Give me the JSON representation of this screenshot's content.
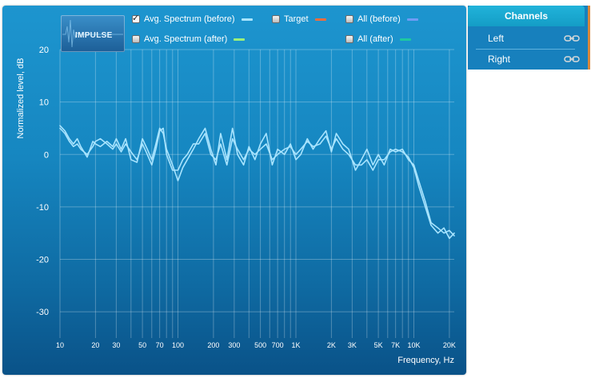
{
  "logo": {
    "label": "IMPULSE"
  },
  "legend": [
    {
      "label": "Avg. Spectrum (before)",
      "checked": true,
      "color": "#a8e4ff"
    },
    {
      "label": "Target",
      "checked": false,
      "color": "#f26d3d"
    },
    {
      "label": "All (before)",
      "checked": false,
      "color": "#6f9cf5"
    },
    {
      "label": "Avg. Spectrum (after)",
      "checked": false,
      "color": "#9bf07a"
    },
    {
      "label": "All (after)",
      "checked": false,
      "color": "#1ec9a0"
    }
  ],
  "channels": {
    "title": "Channels",
    "items": [
      {
        "label": "Left",
        "icon": "link-icon"
      },
      {
        "label": "Right",
        "icon": "link-icon"
      }
    ]
  },
  "chart_data": {
    "type": "line",
    "xlabel": "Frequency, Hz",
    "ylabel": "Normalized level, dB",
    "xscale": "log",
    "xlim": [
      10,
      22000
    ],
    "ylim": [
      -35,
      20
    ],
    "grid": true,
    "yticks": [
      20,
      10,
      0,
      -10,
      -20,
      -30
    ],
    "xticks": [
      {
        "value": 10,
        "label": "10"
      },
      {
        "value": 20,
        "label": "20"
      },
      {
        "value": 30,
        "label": "30"
      },
      {
        "value": 50,
        "label": "50"
      },
      {
        "value": 70,
        "label": "70"
      },
      {
        "value": 100,
        "label": "100"
      },
      {
        "value": 200,
        "label": "200"
      },
      {
        "value": 300,
        "label": "300"
      },
      {
        "value": 500,
        "label": "500"
      },
      {
        "value": 700,
        "label": "700"
      },
      {
        "value": 1000,
        "label": "1K"
      },
      {
        "value": 2000,
        "label": "2K"
      },
      {
        "value": 3000,
        "label": "3K"
      },
      {
        "value": 5000,
        "label": "5K"
      },
      {
        "value": 7000,
        "label": "7K"
      },
      {
        "value": 10000,
        "label": "10K"
      },
      {
        "value": 20000,
        "label": "20K"
      }
    ],
    "series": [
      {
        "color": "#a8e4ff",
        "x": [
          10,
          11,
          12,
          13,
          14,
          15,
          17,
          19,
          20,
          22,
          25,
          28,
          30,
          33,
          36,
          40,
          45,
          50,
          55,
          60,
          65,
          70,
          75,
          80,
          90,
          100,
          110,
          120,
          135,
          150,
          170,
          190,
          210,
          230,
          260,
          290,
          320,
          360,
          400,
          450,
          500,
          560,
          630,
          700,
          800,
          900,
          1000,
          1100,
          1250,
          1400,
          1600,
          1800,
          2000,
          2200,
          2500,
          2800,
          3200,
          3600,
          4000,
          4500,
          5000,
          5600,
          6300,
          7000,
          8000,
          9000,
          10000,
          11000,
          12500,
          14000,
          16000,
          18000,
          20000,
          22000
        ],
        "y": [
          5.5,
          4.5,
          3,
          2,
          3,
          1.5,
          -0.5,
          2.5,
          2,
          1.5,
          2.5,
          1.5,
          3,
          1,
          3,
          -1,
          -1.5,
          3,
          1,
          -1,
          2,
          5,
          4,
          1,
          -2,
          -5,
          -2.5,
          -1,
          1,
          3,
          5,
          1,
          -2,
          4,
          -1,
          5,
          0,
          -2,
          1.5,
          -1,
          2,
          4,
          -2,
          1,
          0,
          2,
          -1,
          0,
          3,
          1,
          3,
          4.5,
          0.5,
          4,
          2,
          1,
          -3,
          -1,
          1,
          -2,
          0,
          -2,
          1,
          0.5,
          1,
          -1,
          -2,
          -5,
          -9,
          -13,
          -14,
          -15,
          -14.5,
          -15.5
        ]
      },
      {
        "color": "#a8e4ff",
        "x": [
          10,
          11,
          12,
          13,
          14,
          15,
          17,
          19,
          20,
          22,
          25,
          28,
          30,
          33,
          36,
          40,
          45,
          50,
          55,
          60,
          65,
          70,
          75,
          80,
          90,
          100,
          110,
          120,
          135,
          150,
          170,
          190,
          210,
          230,
          260,
          290,
          320,
          360,
          400,
          450,
          500,
          560,
          630,
          700,
          800,
          900,
          1000,
          1100,
          1250,
          1400,
          1600,
          1800,
          2000,
          2200,
          2500,
          2800,
          3200,
          3600,
          4000,
          4500,
          5000,
          5600,
          6300,
          7000,
          8000,
          9000,
          10000,
          11000,
          12500,
          14000,
          16000,
          18000,
          20000,
          22000
        ],
        "y": [
          5,
          4,
          2.5,
          1.5,
          2,
          1,
          0,
          1.5,
          2.5,
          3,
          2,
          1,
          2,
          0.5,
          2,
          0.5,
          -1,
          2,
          0,
          -2,
          1,
          4.5,
          5,
          0,
          -3,
          -3,
          -1,
          0,
          2,
          2,
          4,
          0,
          -1,
          2,
          -2,
          3,
          1,
          -1,
          1,
          0,
          1,
          2,
          -1,
          0,
          1,
          1.5,
          0,
          1,
          2.5,
          1.5,
          2,
          3.5,
          1,
          3,
          1,
          0,
          -2,
          -2,
          -1,
          -3,
          -1,
          -1,
          0.5,
          1,
          0.5,
          -0.5,
          -2.5,
          -6,
          -10,
          -13.5,
          -15,
          -14,
          -16,
          -15
        ]
      }
    ]
  }
}
